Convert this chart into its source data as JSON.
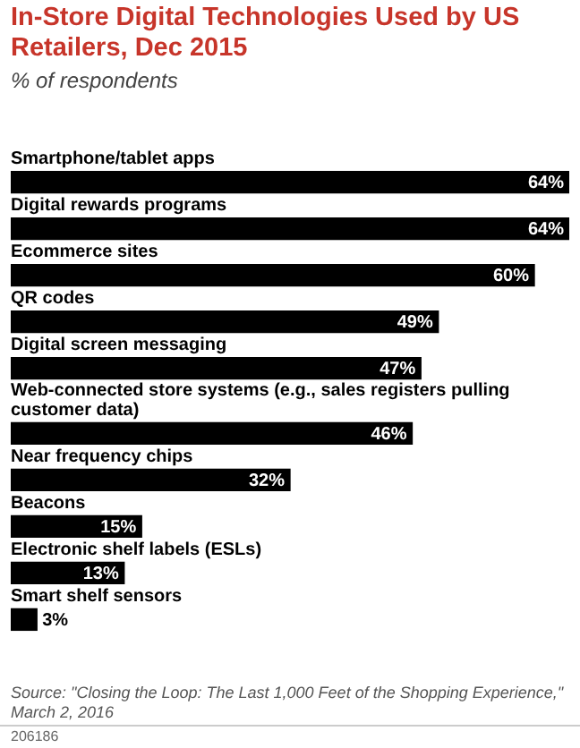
{
  "chart_data": {
    "type": "bar",
    "orientation": "horizontal",
    "title": "In-Store Digital Technologies Used by US Retailers, Dec 2015",
    "subtitle": "% of respondents",
    "categories": [
      "Smartphone/tablet apps",
      "Digital rewards programs",
      "Ecommerce sites",
      "QR codes",
      "Digital screen messaging",
      "Web-connected store systems (e.g., sales registers pulling customer data)",
      "Near frequency chips",
      "Beacons",
      "Electronic shelf labels (ESLs)",
      "Smart shelf sensors"
    ],
    "values": [
      64,
      64,
      60,
      49,
      47,
      46,
      32,
      15,
      13,
      3
    ],
    "value_labels": [
      "64%",
      "64%",
      "60%",
      "49%",
      "47%",
      "46%",
      "32%",
      "15%",
      "13%",
      "3%"
    ],
    "color": "#000000",
    "annotations": [
      "Source: \"Closing the Loop: The Last 1,000 Feet of the Shopping Experience,\" March 2, 2016",
      "206186"
    ]
  }
}
